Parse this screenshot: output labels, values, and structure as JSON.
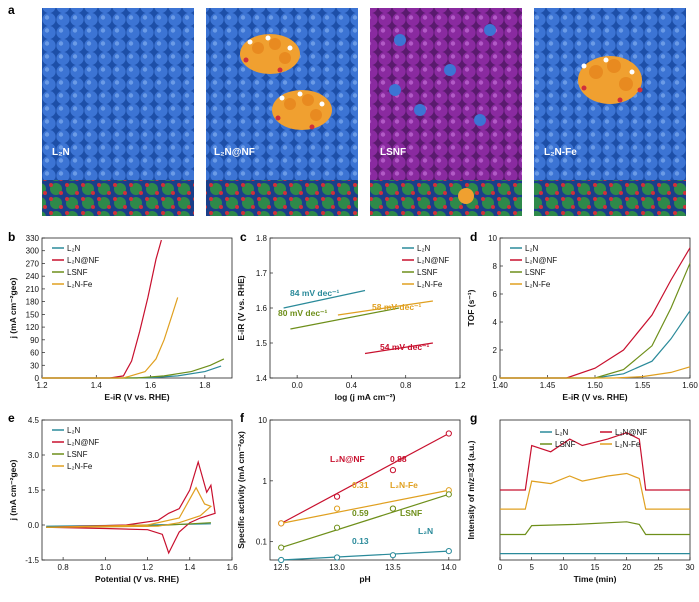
{
  "panel_letters": [
    "a",
    "b",
    "c",
    "d",
    "e",
    "f",
    "g"
  ],
  "scene_labels": [
    "L₂N",
    "L₂N@NF",
    "LSNF",
    "L₂N-Fe"
  ],
  "colors": {
    "L2N": "#2a8a9a",
    "L2N@NF": "#c8102e",
    "LSNF": "#6e8f1a",
    "L2N-Fe": "#e0a020",
    "atom_blue": "#3a6fd0",
    "atom_purple": "#8a2aa0"
  },
  "chart_data": [
    {
      "panel": "b",
      "type": "line",
      "xlabel": "E-iR (V vs. RHE)",
      "ylabel": "j (mA cm⁻²geo)",
      "xlim": [
        1.2,
        1.9
      ],
      "ylim": [
        0,
        330
      ],
      "xticks": [
        "1.2",
        "1.4",
        "1.6",
        "1.8"
      ],
      "yticks": [
        "0",
        "30",
        "60",
        "90",
        "120",
        "150",
        "180",
        "210",
        "240",
        "270",
        "300",
        "330"
      ],
      "legend": [
        "L₂N",
        "L₂N@NF",
        "LSNF",
        "L₂N-Fe"
      ],
      "series": [
        {
          "name": "L₂N",
          "x": [
            1.2,
            1.5,
            1.6,
            1.7,
            1.8,
            1.86
          ],
          "y": [
            0,
            0,
            1,
            5,
            15,
            28
          ]
        },
        {
          "name": "L₂N@NF",
          "x": [
            1.2,
            1.45,
            1.5,
            1.53,
            1.56,
            1.59,
            1.62,
            1.64
          ],
          "y": [
            0,
            0,
            5,
            40,
            110,
            190,
            280,
            325
          ]
        },
        {
          "name": "LSNF",
          "x": [
            1.2,
            1.55,
            1.65,
            1.75,
            1.82,
            1.87
          ],
          "y": [
            0,
            0,
            5,
            15,
            30,
            45
          ]
        },
        {
          "name": "L₂N-Fe",
          "x": [
            1.2,
            1.5,
            1.58,
            1.62,
            1.65,
            1.68,
            1.7
          ],
          "y": [
            0,
            0,
            15,
            45,
            90,
            150,
            190
          ]
        }
      ]
    },
    {
      "panel": "c",
      "type": "line",
      "xlabel": "log (j mA cm⁻²)",
      "ylabel": "E-iR (V vs. RHE)",
      "xlim": [
        -0.2,
        1.2
      ],
      "ylim": [
        1.4,
        1.8
      ],
      "xticks": [
        "0.0",
        "0.4",
        "0.8",
        "1.2"
      ],
      "yticks": [
        "1.4",
        "1.5",
        "1.6",
        "1.7",
        "1.8"
      ],
      "legend": [
        "L₂N",
        "L₂N@NF",
        "LSNF",
        "L₂N-Fe"
      ],
      "annotations": [
        "84 mV dec⁻¹",
        "80 mV dec⁻¹",
        "58 mV dec⁻¹",
        "54 mV dec⁻¹"
      ],
      "series": [
        {
          "name": "L₂N",
          "x": [
            -0.1,
            0.5
          ],
          "y": [
            1.6,
            1.65
          ]
        },
        {
          "name": "L₂N@NF",
          "x": [
            0.5,
            1.0
          ],
          "y": [
            1.47,
            1.5
          ]
        },
        {
          "name": "LSNF",
          "x": [
            -0.05,
            0.75
          ],
          "y": [
            1.54,
            1.6
          ]
        },
        {
          "name": "L₂N-Fe",
          "x": [
            0.3,
            1.0
          ],
          "y": [
            1.58,
            1.62
          ]
        }
      ]
    },
    {
      "panel": "d",
      "type": "line",
      "xlabel": "E-iR (V vs. RHE)",
      "ylabel": "TOF (s⁻¹)",
      "xlim": [
        1.4,
        1.6
      ],
      "ylim": [
        0,
        10
      ],
      "xticks": [
        "1.40",
        "1.45",
        "1.50",
        "1.55",
        "1.60"
      ],
      "yticks": [
        "0",
        "2",
        "4",
        "6",
        "8",
        "10"
      ],
      "legend": [
        "L₂N",
        "L₂N@NF",
        "LSNF",
        "L₂N-Fe"
      ],
      "series": [
        {
          "name": "L₂N",
          "x": [
            1.4,
            1.5,
            1.53,
            1.56,
            1.58,
            1.6
          ],
          "y": [
            0,
            0,
            0.3,
            1.2,
            2.8,
            4.8
          ]
        },
        {
          "name": "L₂N@NF",
          "x": [
            1.4,
            1.47,
            1.5,
            1.53,
            1.56,
            1.58,
            1.6
          ],
          "y": [
            0,
            0,
            0.7,
            2,
            4.5,
            7,
            9.3
          ]
        },
        {
          "name": "LSNF",
          "x": [
            1.4,
            1.5,
            1.53,
            1.56,
            1.58,
            1.6
          ],
          "y": [
            0,
            0,
            0.6,
            2.3,
            5,
            8.2
          ]
        },
        {
          "name": "L₂N-Fe",
          "x": [
            1.4,
            1.52,
            1.55,
            1.58,
            1.6
          ],
          "y": [
            0,
            0,
            0.1,
            0.4,
            0.8
          ]
        }
      ]
    },
    {
      "panel": "e",
      "type": "line",
      "xlabel": "Potential (V vs. RHE)",
      "ylabel": "j (mA cm⁻²geo)",
      "xlim": [
        0.7,
        1.6
      ],
      "ylim": [
        -1.5,
        4.5
      ],
      "xticks": [
        "0.8",
        "1.0",
        "1.2",
        "1.4",
        "1.6"
      ],
      "yticks": [
        "-1.5",
        "0.0",
        "1.5",
        "3.0",
        "4.5"
      ],
      "legend": [
        "L₂N",
        "L₂N@NF",
        "LSNF",
        "L₂N-Fe"
      ],
      "series": [
        {
          "name": "L₂N",
          "x": [
            0.72,
            1.2,
            1.5
          ],
          "y": [
            -0.05,
            0,
            0.05
          ]
        },
        {
          "name": "L₂N@NF",
          "x": [
            0.72,
            1.1,
            1.25,
            1.3,
            1.35,
            1.4,
            1.44,
            1.48,
            1.5,
            1.52,
            1.45,
            1.4,
            1.35,
            1.3,
            1.27,
            1.2,
            1.0,
            0.72
          ],
          "y": [
            -0.1,
            0,
            0.2,
            0.5,
            0.7,
            1.5,
            2.7,
            1.4,
            1.7,
            0.5,
            0.3,
            0.1,
            -0.3,
            -1.2,
            -0.4,
            -0.2,
            -0.15,
            -0.1
          ]
        },
        {
          "name": "LSNF",
          "x": [
            0.72,
            1.2,
            1.5
          ],
          "y": [
            -0.1,
            -0.05,
            0.1
          ]
        },
        {
          "name": "L₂N-Fe",
          "x": [
            0.72,
            1.2,
            1.35,
            1.43,
            1.47,
            1.5,
            1.45,
            1.35,
            1.25,
            0.72
          ],
          "y": [
            -0.1,
            0,
            0.3,
            1.6,
            0.9,
            0.8,
            0.4,
            0.1,
            -0.05,
            -0.1
          ]
        }
      ]
    },
    {
      "panel": "f",
      "type": "scatter",
      "xlabel": "pH",
      "ylabel": "Specific activity (mA cm⁻²ox)",
      "xlim": [
        12.4,
        14.1
      ],
      "ylim_log": [
        0.05,
        10
      ],
      "xticks": [
        "12.5",
        "13.0",
        "13.5",
        "14.0"
      ],
      "yticks": [
        "0.1",
        "1",
        "10"
      ],
      "annotations": [
        "L₂N@NF",
        "0.88",
        "L₂N-Fe",
        "0.31",
        "LSNF",
        "0.59",
        "L₂N",
        "0.13"
      ],
      "series": [
        {
          "name": "L₂N@NF",
          "x": [
            12.5,
            13.0,
            13.5,
            14.0
          ],
          "y": [
            0.2,
            0.55,
            1.5,
            6
          ]
        },
        {
          "name": "L₂N-Fe",
          "x": [
            12.5,
            13.0,
            13.5,
            14.0
          ],
          "y": [
            0.2,
            0.35,
            0.35,
            0.7
          ]
        },
        {
          "name": "LSNF",
          "x": [
            12.5,
            13.0,
            13.5,
            14.0
          ],
          "y": [
            0.08,
            0.17,
            0.35,
            0.6
          ]
        },
        {
          "name": "L₂N",
          "x": [
            12.5,
            13.0,
            13.5,
            14.0
          ],
          "y": [
            0.05,
            0.055,
            0.06,
            0.07
          ]
        }
      ]
    },
    {
      "panel": "g",
      "type": "line",
      "xlabel": "Time (min)",
      "ylabel": "Intensity of m/z=34 (a.u.)",
      "xlim": [
        0,
        30
      ],
      "xticks": [
        "0",
        "5",
        "10",
        "15",
        "20",
        "25",
        "30"
      ],
      "legend": [
        "L₂N",
        "L₂N@NF",
        "LSNF",
        "L₂N-Fe"
      ],
      "series": [
        {
          "name": "L₂N",
          "x": [
            0,
            30
          ],
          "y": [
            0.05,
            0.05
          ]
        },
        {
          "name": "L₂N@NF",
          "x": [
            0,
            4,
            5,
            8,
            11,
            13,
            17,
            20,
            22,
            23,
            30
          ],
          "y": [
            0.55,
            0.55,
            0.9,
            0.85,
            0.95,
            0.9,
            0.95,
            1.0,
            0.95,
            0.55,
            0.55
          ]
        },
        {
          "name": "LSNF",
          "x": [
            0,
            4,
            5,
            12,
            20,
            22,
            23,
            30
          ],
          "y": [
            0.2,
            0.2,
            0.27,
            0.28,
            0.3,
            0.28,
            0.2,
            0.2
          ]
        },
        {
          "name": "L₂N-Fe",
          "x": [
            0,
            4,
            5,
            8,
            11,
            13,
            17,
            20,
            22,
            23,
            30
          ],
          "y": [
            0.4,
            0.4,
            0.62,
            0.6,
            0.66,
            0.62,
            0.66,
            0.68,
            0.64,
            0.4,
            0.4
          ]
        }
      ]
    }
  ]
}
